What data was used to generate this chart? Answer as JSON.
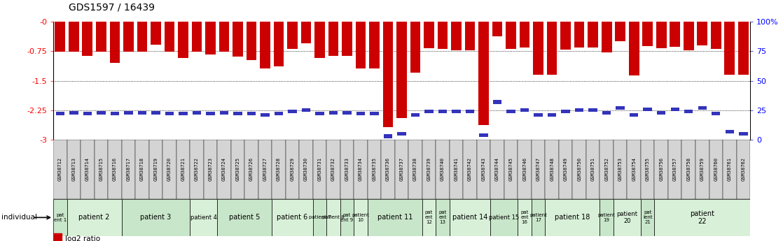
{
  "title": "GDS1597 / 16439",
  "samples": [
    "GSM38712",
    "GSM38713",
    "GSM38714",
    "GSM38715",
    "GSM38716",
    "GSM38717",
    "GSM38718",
    "GSM38719",
    "GSM38720",
    "GSM38721",
    "GSM38722",
    "GSM38723",
    "GSM38724",
    "GSM38725",
    "GSM38726",
    "GSM38727",
    "GSM38728",
    "GSM38729",
    "GSM38730",
    "GSM38731",
    "GSM38732",
    "GSM38733",
    "GSM38734",
    "GSM38735",
    "GSM38736",
    "GSM38737",
    "GSM38738",
    "GSM38739",
    "GSM38740",
    "GSM38741",
    "GSM38742",
    "GSM38743",
    "GSM38744",
    "GSM38745",
    "GSM38746",
    "GSM38747",
    "GSM38748",
    "GSM38749",
    "GSM38750",
    "GSM38751",
    "GSM38752",
    "GSM38753",
    "GSM38754",
    "GSM38755",
    "GSM38756",
    "GSM38757",
    "GSM38758",
    "GSM38759",
    "GSM38760",
    "GSM38761",
    "GSM38762"
  ],
  "log2_values": [
    -0.76,
    -0.76,
    -0.87,
    -0.76,
    -1.05,
    -0.76,
    -0.76,
    -0.58,
    -0.76,
    -0.92,
    -0.76,
    -0.83,
    -0.76,
    -0.88,
    -0.97,
    -1.18,
    -1.13,
    -0.69,
    -0.55,
    -0.93,
    -0.86,
    -0.87,
    -1.18,
    -1.18,
    -2.68,
    -2.45,
    -1.3,
    -0.67,
    -0.69,
    -0.73,
    -0.73,
    -2.62,
    -0.37,
    -0.69,
    -0.65,
    -1.35,
    -1.35,
    -0.71,
    -0.65,
    -0.65,
    -0.78,
    -0.5,
    -1.36,
    -0.62,
    -0.67,
    -0.63,
    -0.72,
    -0.61,
    -0.69,
    -1.35,
    -1.35
  ],
  "percentile_values": [
    22,
    23,
    22,
    23,
    22,
    23,
    23,
    23,
    22,
    22,
    23,
    22,
    23,
    22,
    22,
    21,
    22,
    24,
    25,
    22,
    23,
    23,
    22,
    22,
    3,
    5,
    21,
    24,
    24,
    24,
    24,
    4,
    32,
    24,
    25,
    21,
    21,
    24,
    25,
    25,
    23,
    27,
    21,
    26,
    23,
    26,
    24,
    27,
    22,
    7,
    5
  ],
  "patients": [
    {
      "label": "pat\nent 1",
      "start": 0,
      "end": 1,
      "color": "#c8e6c9"
    },
    {
      "label": "patient 2",
      "start": 1,
      "end": 5,
      "color": "#d8f0d8"
    },
    {
      "label": "patient 3",
      "start": 5,
      "end": 10,
      "color": "#c8e6c9"
    },
    {
      "label": "patient 4",
      "start": 10,
      "end": 12,
      "color": "#d8f0d8"
    },
    {
      "label": "patient 5",
      "start": 12,
      "end": 16,
      "color": "#c8e6c9"
    },
    {
      "label": "patient 6",
      "start": 16,
      "end": 19,
      "color": "#d8f0d8"
    },
    {
      "label": "patient 7",
      "start": 19,
      "end": 20,
      "color": "#c8e6c9"
    },
    {
      "label": "patient 8",
      "start": 20,
      "end": 21,
      "color": "#d8f0d8"
    },
    {
      "label": "pat\nent 9",
      "start": 21,
      "end": 22,
      "color": "#c8e6c9"
    },
    {
      "label": "patient\n10",
      "start": 22,
      "end": 23,
      "color": "#d8f0d8"
    },
    {
      "label": "patient 11",
      "start": 23,
      "end": 27,
      "color": "#c8e6c9"
    },
    {
      "label": "pat\nent\n12",
      "start": 27,
      "end": 28,
      "color": "#d8f0d8"
    },
    {
      "label": "pat\nent\n13",
      "start": 28,
      "end": 29,
      "color": "#c8e6c9"
    },
    {
      "label": "patient 14",
      "start": 29,
      "end": 32,
      "color": "#d8f0d8"
    },
    {
      "label": "patient 15",
      "start": 32,
      "end": 34,
      "color": "#c8e6c9"
    },
    {
      "label": "pat\nent\n16",
      "start": 34,
      "end": 35,
      "color": "#d8f0d8"
    },
    {
      "label": "patient\n17",
      "start": 35,
      "end": 36,
      "color": "#c8e6c9"
    },
    {
      "label": "patient 18",
      "start": 36,
      "end": 40,
      "color": "#d8f0d8"
    },
    {
      "label": "patient\n19",
      "start": 40,
      "end": 41,
      "color": "#c8e6c9"
    },
    {
      "label": "patient\n20",
      "start": 41,
      "end": 43,
      "color": "#d8f0d8"
    },
    {
      "label": "pat\nient\n21",
      "start": 43,
      "end": 44,
      "color": "#c8e6c9"
    },
    {
      "label": "patient\n22",
      "start": 44,
      "end": 51,
      "color": "#d8f0d8"
    }
  ],
  "ylim_log2": [
    -3.0,
    0.0
  ],
  "yticks_log2": [
    0,
    -0.75,
    -1.5,
    -2.25,
    -3
  ],
  "ytick_labels_log2": [
    "-0",
    "-0.75",
    "-1.5",
    "-2.25",
    "-3"
  ],
  "ylim_pct": [
    0,
    100
  ],
  "yticks_pct": [
    0,
    25,
    50,
    75,
    100
  ],
  "ytick_labels_pct": [
    "0",
    "25",
    "50",
    "75",
    "100%"
  ],
  "hgrid_log2": [
    -0.75,
    -1.5,
    -2.25
  ],
  "bar_color": "#cc0000",
  "percentile_color": "#3333bb",
  "sample_bg": "#d4d4d4"
}
